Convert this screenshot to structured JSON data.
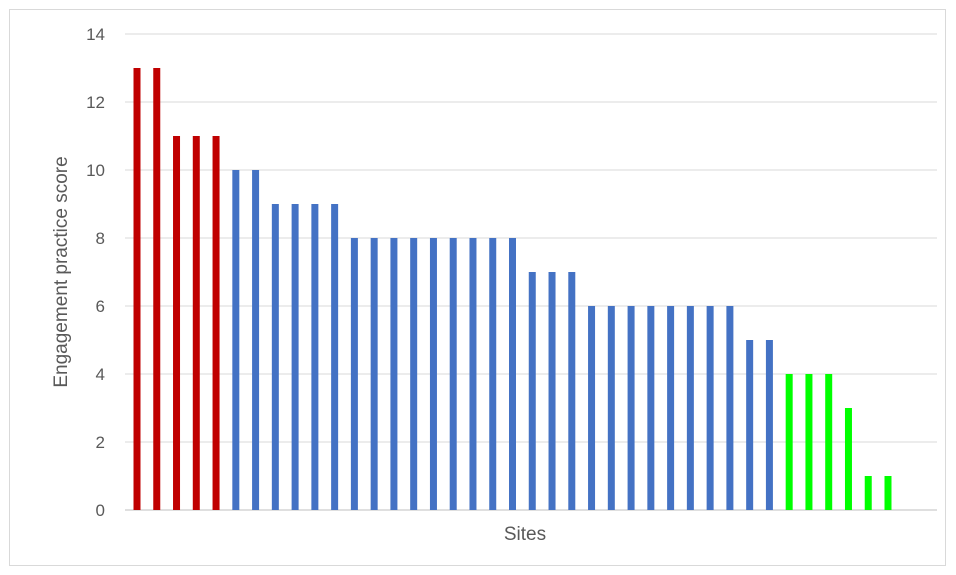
{
  "chart_data": {
    "type": "bar",
    "title": "",
    "xlabel": "Sites",
    "ylabel": "Engagement practice score",
    "ylim": [
      0,
      14
    ],
    "yticks": [
      0,
      2,
      4,
      6,
      8,
      10,
      12,
      14
    ],
    "grid": true,
    "legend": "none",
    "values": [
      13,
      13,
      11,
      11,
      11,
      10,
      10,
      9,
      9,
      9,
      9,
      8,
      8,
      8,
      8,
      8,
      8,
      8,
      8,
      8,
      7,
      7,
      7,
      6,
      6,
      6,
      6,
      6,
      6,
      6,
      6,
      5,
      5,
      4,
      4,
      4,
      3,
      1,
      1
    ],
    "bar_colors": [
      "#c00000",
      "#c00000",
      "#c00000",
      "#c00000",
      "#c00000",
      "#4472c4",
      "#4472c4",
      "#4472c4",
      "#4472c4",
      "#4472c4",
      "#4472c4",
      "#4472c4",
      "#4472c4",
      "#4472c4",
      "#4472c4",
      "#4472c4",
      "#4472c4",
      "#4472c4",
      "#4472c4",
      "#4472c4",
      "#4472c4",
      "#4472c4",
      "#4472c4",
      "#4472c4",
      "#4472c4",
      "#4472c4",
      "#4472c4",
      "#4472c4",
      "#4472c4",
      "#4472c4",
      "#4472c4",
      "#4472c4",
      "#4472c4",
      "#00ff00",
      "#00ff00",
      "#00ff00",
      "#00ff00",
      "#00ff00",
      "#00ff00"
    ],
    "gridline_color": "#d9d9d9",
    "axis_color": "#bfbfbf"
  }
}
